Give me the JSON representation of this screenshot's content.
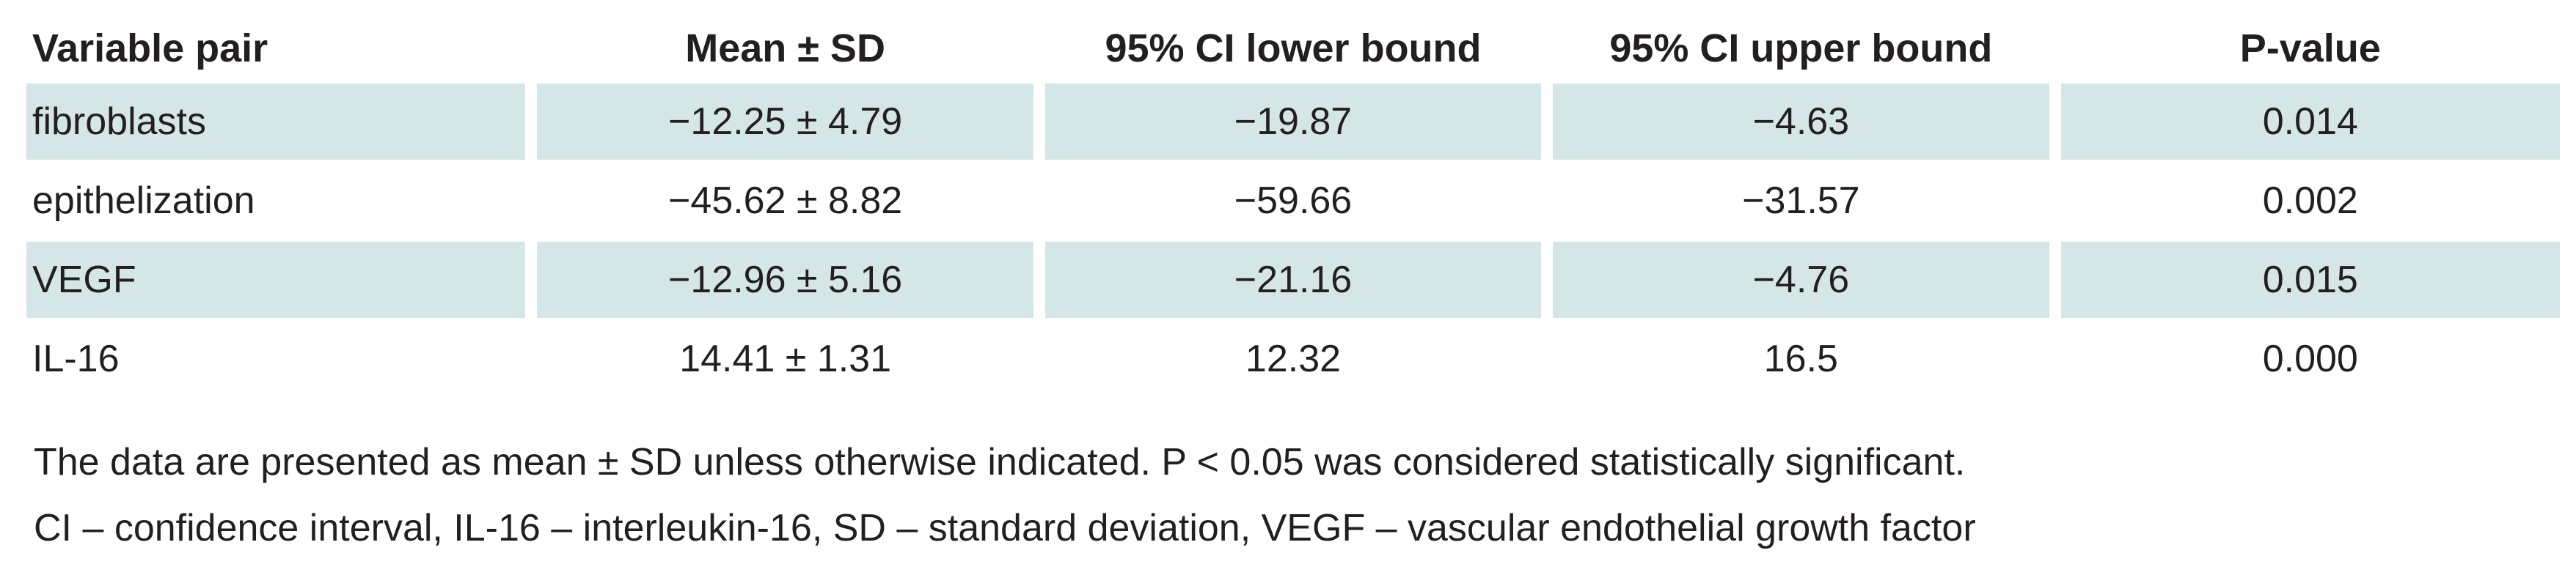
{
  "table": {
    "headers": [
      "Variable pair",
      "Mean ± SD",
      "95% CI lower bound",
      "95% CI upper bound",
      "P-value"
    ],
    "rows": [
      [
        "fibroblasts",
        "−12.25 ± 4.79",
        "−19.87",
        "−4.63",
        "0.014"
      ],
      [
        "epithelization",
        "−45.62 ± 8.82",
        "−59.66",
        "−31.57",
        "0.002"
      ],
      [
        "VEGF",
        "−12.96 ± 5.16",
        "−21.16",
        "−4.76",
        "0.015"
      ],
      [
        "IL-16",
        "14.41 ± 1.31",
        "12.32",
        "16.5",
        "0.000"
      ]
    ],
    "shade_color": "#d5e6e7"
  },
  "footnotes": [
    "The data are presented as mean ± SD unless otherwise indicated. P < 0.05 was considered statistically significant.",
    "CI – confidence interval, IL-16 – interleukin-16, SD – standard deviation, VEGF – vascular endothelial growth factor"
  ]
}
